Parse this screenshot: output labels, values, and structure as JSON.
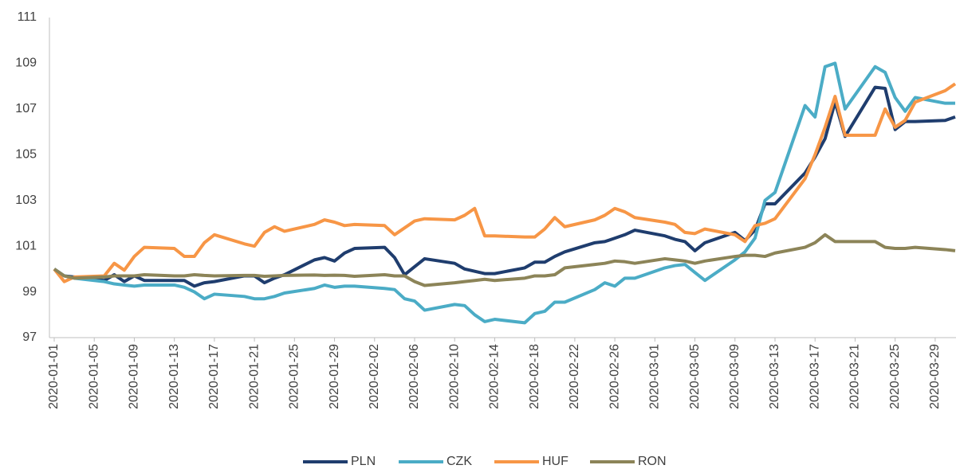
{
  "chart_data": {
    "type": "line",
    "x": [
      "2020-01-01",
      "2020-01-02",
      "2020-01-03",
      "2020-01-06",
      "2020-01-07",
      "2020-01-08",
      "2020-01-09",
      "2020-01-10",
      "2020-01-13",
      "2020-01-14",
      "2020-01-15",
      "2020-01-16",
      "2020-01-17",
      "2020-01-20",
      "2020-01-21",
      "2020-01-22",
      "2020-01-23",
      "2020-01-24",
      "2020-01-27",
      "2020-01-28",
      "2020-01-29",
      "2020-01-30",
      "2020-01-31",
      "2020-02-03",
      "2020-02-04",
      "2020-02-05",
      "2020-02-06",
      "2020-02-07",
      "2020-02-10",
      "2020-02-11",
      "2020-02-12",
      "2020-02-13",
      "2020-02-14",
      "2020-02-17",
      "2020-02-18",
      "2020-02-19",
      "2020-02-20",
      "2020-02-21",
      "2020-02-24",
      "2020-02-25",
      "2020-02-26",
      "2020-02-27",
      "2020-02-28",
      "2020-03-02",
      "2020-03-03",
      "2020-03-04",
      "2020-03-05",
      "2020-03-06",
      "2020-03-09",
      "2020-03-10",
      "2020-03-11",
      "2020-03-12",
      "2020-03-13",
      "2020-03-16",
      "2020-03-17",
      "2020-03-18",
      "2020-03-19",
      "2020-03-20",
      "2020-03-23",
      "2020-03-24",
      "2020-03-25",
      "2020-03-26",
      "2020-03-27",
      "2020-03-30",
      "2020-03-31"
    ],
    "series": [
      {
        "name": "PLN",
        "color": "#1f3d6e",
        "values": [
          100.0,
          99.7,
          99.65,
          99.5,
          99.75,
          99.45,
          99.7,
          99.5,
          99.5,
          99.5,
          99.25,
          99.4,
          99.45,
          99.7,
          99.7,
          99.4,
          99.6,
          99.75,
          100.4,
          100.5,
          100.35,
          100.7,
          100.9,
          100.95,
          100.5,
          99.75,
          100.1,
          100.45,
          100.25,
          100.0,
          99.9,
          99.8,
          99.8,
          100.05,
          100.3,
          100.3,
          100.55,
          100.75,
          101.15,
          101.2,
          101.35,
          101.5,
          101.7,
          101.45,
          101.3,
          101.2,
          100.8,
          101.15,
          101.6,
          101.25,
          101.7,
          102.85,
          102.85,
          104.2,
          104.9,
          105.7,
          107.3,
          105.8,
          107.95,
          107.9,
          106.1,
          106.45,
          106.45,
          106.5,
          106.65
        ]
      },
      {
        "name": "CZK",
        "color": "#4bacc6",
        "values": [
          100.0,
          99.7,
          99.6,
          99.45,
          99.35,
          99.3,
          99.25,
          99.3,
          99.3,
          99.2,
          99.0,
          98.7,
          98.9,
          98.8,
          98.7,
          98.7,
          98.8,
          98.95,
          99.15,
          99.3,
          99.2,
          99.25,
          99.25,
          99.15,
          99.1,
          98.7,
          98.6,
          98.2,
          98.45,
          98.4,
          98.0,
          97.7,
          97.8,
          97.65,
          98.05,
          98.15,
          98.55,
          98.55,
          99.1,
          99.4,
          99.25,
          99.6,
          99.6,
          100.05,
          100.15,
          100.2,
          99.85,
          99.5,
          100.4,
          100.75,
          101.35,
          103.0,
          103.35,
          107.15,
          106.65,
          108.85,
          109.0,
          107.0,
          108.85,
          108.6,
          107.5,
          106.9,
          107.5,
          107.25,
          107.25
        ]
      },
      {
        "name": "HUF",
        "color": "#f79646",
        "values": [
          100.0,
          99.45,
          99.65,
          99.7,
          100.25,
          99.95,
          100.55,
          100.95,
          100.9,
          100.55,
          100.55,
          101.15,
          101.5,
          101.1,
          101.0,
          101.6,
          101.85,
          101.65,
          101.95,
          102.15,
          102.05,
          101.9,
          101.95,
          101.9,
          101.5,
          101.8,
          102.1,
          102.2,
          102.15,
          102.35,
          102.65,
          101.45,
          101.45,
          101.4,
          101.4,
          101.75,
          102.25,
          101.85,
          102.15,
          102.35,
          102.65,
          102.5,
          102.25,
          102.05,
          101.95,
          101.6,
          101.55,
          101.75,
          101.5,
          101.2,
          101.9,
          102.0,
          102.2,
          103.95,
          105.0,
          106.2,
          107.55,
          105.85,
          105.85,
          107.0,
          106.2,
          106.5,
          107.3,
          107.8,
          108.1
        ]
      },
      {
        "name": "RON",
        "color": "#8c8458",
        "values": [
          100.0,
          99.7,
          99.6,
          99.65,
          99.7,
          99.7,
          99.7,
          99.75,
          99.7,
          99.7,
          99.75,
          99.72,
          99.7,
          99.72,
          99.72,
          99.68,
          99.7,
          99.72,
          99.74,
          99.72,
          99.73,
          99.72,
          99.68,
          99.75,
          99.7,
          99.7,
          99.45,
          99.28,
          99.4,
          99.45,
          99.5,
          99.55,
          99.5,
          99.6,
          99.7,
          99.7,
          99.75,
          100.05,
          100.2,
          100.25,
          100.35,
          100.32,
          100.25,
          100.45,
          100.4,
          100.35,
          100.25,
          100.35,
          100.55,
          100.6,
          100.6,
          100.55,
          100.7,
          100.95,
          101.15,
          101.5,
          101.2,
          101.2,
          101.2,
          100.95,
          100.9,
          100.9,
          100.95,
          100.85,
          100.8
        ]
      }
    ],
    "xlim": [
      "2020-01-01",
      "2020-03-31"
    ],
    "xticks": [
      "2020-01-01",
      "2020-01-05",
      "2020-01-09",
      "2020-01-13",
      "2020-01-17",
      "2020-01-21",
      "2020-01-25",
      "2020-01-29",
      "2020-02-02",
      "2020-02-06",
      "2020-02-10",
      "2020-02-14",
      "2020-02-18",
      "2020-02-22",
      "2020-02-26",
      "2020-03-01",
      "2020-03-05",
      "2020-03-09",
      "2020-03-13",
      "2020-03-17",
      "2020-03-21",
      "2020-03-25",
      "2020-03-29"
    ],
    "ylim": [
      97,
      111
    ],
    "yticks": [
      97,
      99,
      101,
      103,
      105,
      107,
      109,
      111
    ],
    "grid": false,
    "legend": "bottom"
  }
}
